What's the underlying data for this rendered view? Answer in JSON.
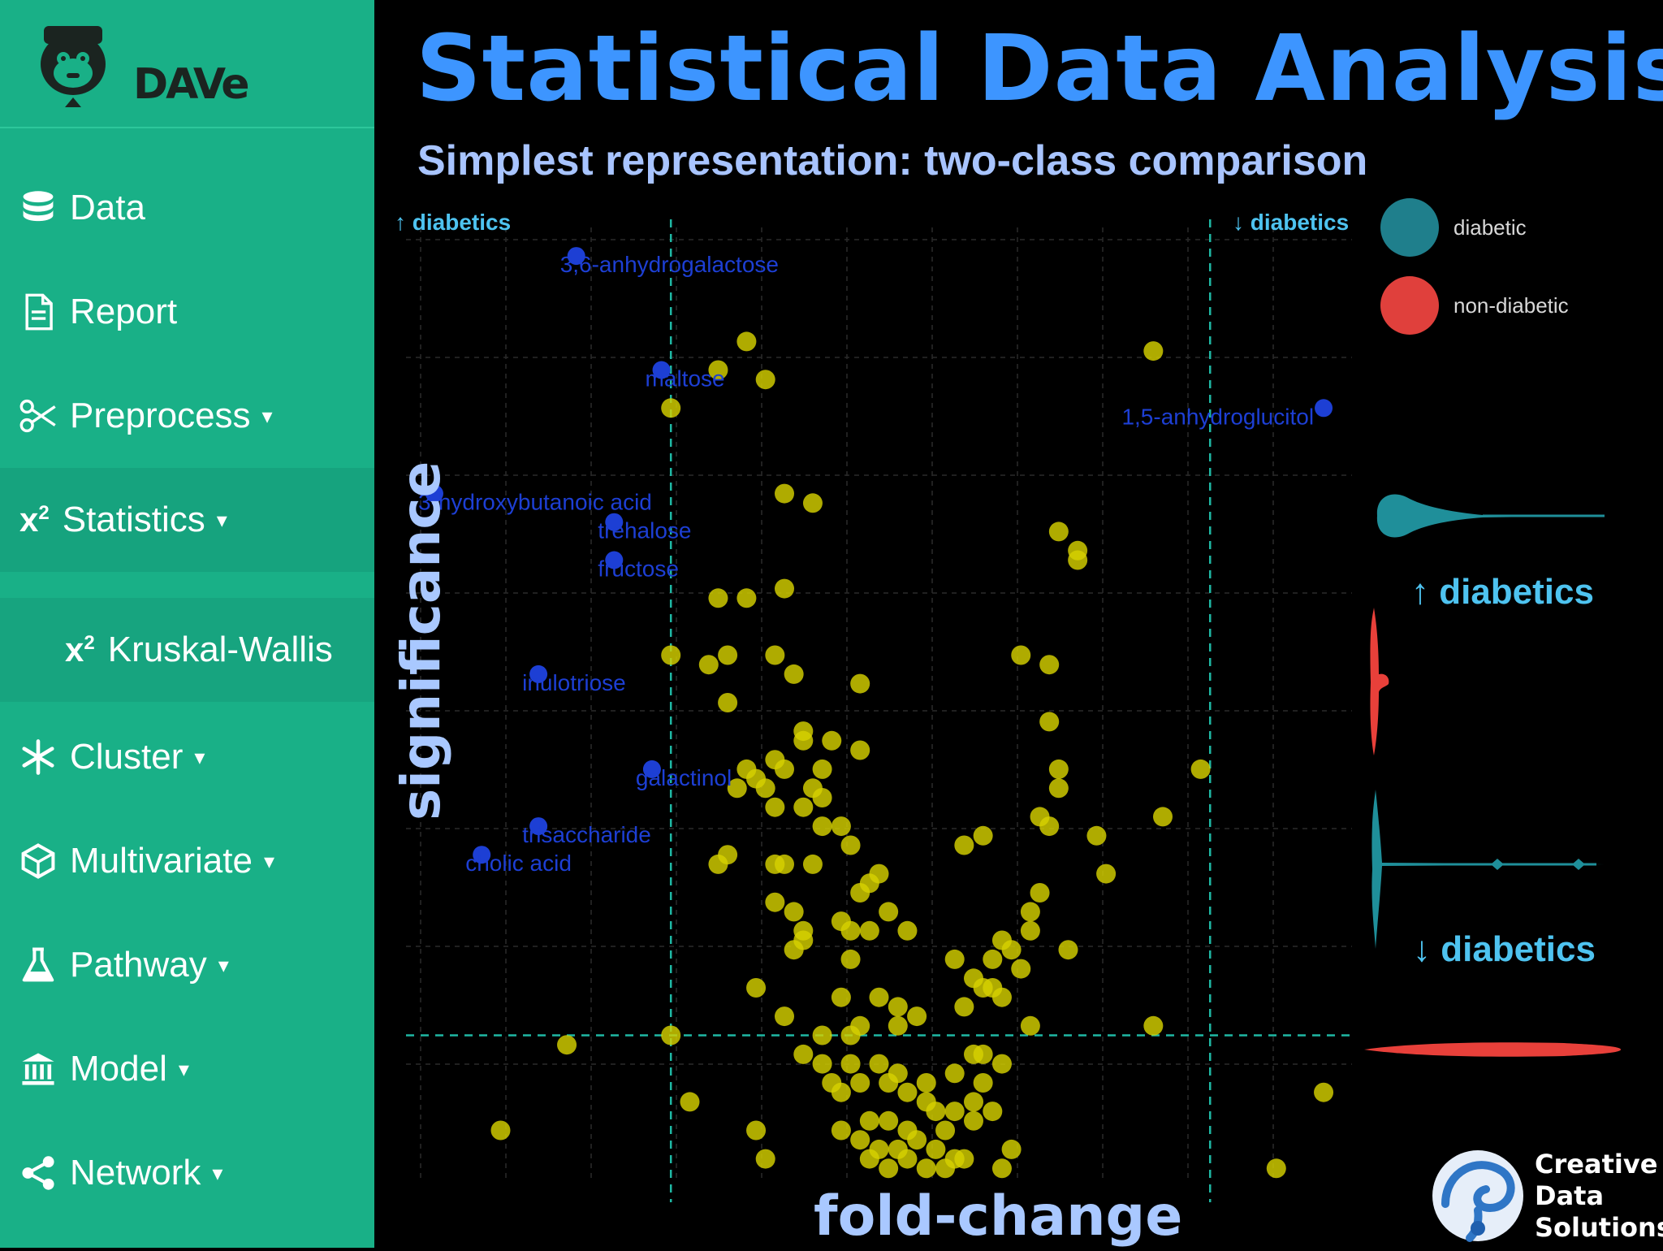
{
  "sidebar": {
    "logo_text": "DAVe",
    "items": [
      {
        "label": "Data",
        "icon": "database-icon"
      },
      {
        "label": "Report",
        "icon": "document-icon"
      },
      {
        "label": "Preprocess",
        "icon": "scissors-icon",
        "caret": "▾"
      },
      {
        "label": "Statistics",
        "icon": "chi-square-icon",
        "caret": "▾",
        "active": true
      },
      {
        "label": "Kruskal-Wallis",
        "icon": "chi-square-icon",
        "sub": true
      },
      {
        "label": "Cluster",
        "icon": "snowflake-icon",
        "caret": "▾"
      },
      {
        "label": "Multivariate",
        "icon": "cube-icon",
        "caret": "▾"
      },
      {
        "label": "Pathway",
        "icon": "flask-icon",
        "caret": "▾"
      },
      {
        "label": "Model",
        "icon": "bank-icon",
        "caret": "▾"
      },
      {
        "label": "Network",
        "icon": "share-icon",
        "caret": "▾"
      }
    ],
    "x2_text": "x",
    "x2_sup": "2"
  },
  "header": {
    "title": "Statistical Data Analysis",
    "subtitle": "Simplest representation: two-class comparison"
  },
  "plot": {
    "corner_left": "↑ diabetics",
    "corner_right": "↓ diabetics",
    "ylabel": "significance",
    "xlabel": "fold-change"
  },
  "legend": {
    "items": [
      {
        "label": "diabetic",
        "color": "#1f7f8c"
      },
      {
        "label": "non-diabetic",
        "color": "#e0403c"
      }
    ]
  },
  "violins": {
    "up_label": "↑ diabetics",
    "down_label": "↓ diabetics",
    "teal": "#1f8f9a",
    "red": "#e8403a"
  },
  "colors": {
    "sidebar": "#19b087",
    "title": "#3d95ff",
    "point_yellow": "#d6d100",
    "point_blue": "#1d3fd4",
    "threshold": "#1fb8a4"
  },
  "branding": {
    "lines": [
      "Creative",
      "Data",
      "Solutions"
    ]
  },
  "chart_data": {
    "type": "scatter",
    "xlabel": "fold-change",
    "ylabel": "significance",
    "x_unit": "plot-relative fold-change (arbitrary, 0–1 across panel)",
    "y_unit": "plot-relative significance (arbitrary, 0 bottom – 1 top)",
    "thresholds": {
      "x_left": 0.28,
      "x_right": 0.85,
      "y": 0.15
    },
    "grid": true,
    "legend": "top-right",
    "labeled_points": [
      {
        "label": "3,6-anhydrogalactose",
        "x": 0.18,
        "y": 0.97
      },
      {
        "label": "maltose",
        "x": 0.27,
        "y": 0.85
      },
      {
        "label": "1,5-anhydroglucitol",
        "x": 0.97,
        "y": 0.81
      },
      {
        "label": "3-hydroxybutanoic acid",
        "x": 0.03,
        "y": 0.72
      },
      {
        "label": "trehalose",
        "x": 0.22,
        "y": 0.69
      },
      {
        "label": "fructose",
        "x": 0.22,
        "y": 0.65
      },
      {
        "label": "inulotriose",
        "x": 0.14,
        "y": 0.53
      },
      {
        "label": "galactinol",
        "x": 0.26,
        "y": 0.43
      },
      {
        "label": "trisaccharide",
        "x": 0.14,
        "y": 0.37
      },
      {
        "label": "cholic acid",
        "x": 0.08,
        "y": 0.34
      }
    ],
    "points": [
      [
        0.36,
        0.88
      ],
      [
        0.33,
        0.85
      ],
      [
        0.38,
        0.84
      ],
      [
        0.28,
        0.81
      ],
      [
        0.79,
        0.87
      ],
      [
        0.4,
        0.72
      ],
      [
        0.43,
        0.71
      ],
      [
        0.69,
        0.68
      ],
      [
        0.71,
        0.66
      ],
      [
        0.71,
        0.65
      ],
      [
        0.33,
        0.61
      ],
      [
        0.36,
        0.61
      ],
      [
        0.4,
        0.62
      ],
      [
        0.65,
        0.55
      ],
      [
        0.28,
        0.55
      ],
      [
        0.32,
        0.54
      ],
      [
        0.34,
        0.55
      ],
      [
        0.39,
        0.55
      ],
      [
        0.68,
        0.54
      ],
      [
        0.41,
        0.53
      ],
      [
        0.48,
        0.52
      ],
      [
        0.34,
        0.5
      ],
      [
        0.42,
        0.47
      ],
      [
        0.45,
        0.46
      ],
      [
        0.42,
        0.46
      ],
      [
        0.48,
        0.45
      ],
      [
        0.68,
        0.48
      ],
      [
        0.39,
        0.44
      ],
      [
        0.44,
        0.43
      ],
      [
        0.36,
        0.43
      ],
      [
        0.4,
        0.43
      ],
      [
        0.37,
        0.42
      ],
      [
        0.35,
        0.41
      ],
      [
        0.38,
        0.41
      ],
      [
        0.43,
        0.41
      ],
      [
        0.44,
        0.4
      ],
      [
        0.42,
        0.39
      ],
      [
        0.69,
        0.43
      ],
      [
        0.69,
        0.41
      ],
      [
        0.84,
        0.43
      ],
      [
        0.8,
        0.38
      ],
      [
        0.39,
        0.39
      ],
      [
        0.44,
        0.37
      ],
      [
        0.46,
        0.37
      ],
      [
        0.67,
        0.38
      ],
      [
        0.68,
        0.37
      ],
      [
        0.61,
        0.36
      ],
      [
        0.59,
        0.35
      ],
      [
        0.73,
        0.36
      ],
      [
        0.47,
        0.35
      ],
      [
        0.34,
        0.34
      ],
      [
        0.39,
        0.33
      ],
      [
        0.4,
        0.33
      ],
      [
        0.33,
        0.33
      ],
      [
        0.43,
        0.33
      ],
      [
        0.5,
        0.32
      ],
      [
        0.74,
        0.32
      ],
      [
        0.49,
        0.31
      ],
      [
        0.48,
        0.3
      ],
      [
        0.67,
        0.3
      ],
      [
        0.39,
        0.29
      ],
      [
        0.41,
        0.28
      ],
      [
        0.51,
        0.28
      ],
      [
        0.46,
        0.27
      ],
      [
        0.66,
        0.28
      ],
      [
        0.42,
        0.26
      ],
      [
        0.47,
        0.26
      ],
      [
        0.49,
        0.26
      ],
      [
        0.53,
        0.26
      ],
      [
        0.63,
        0.25
      ],
      [
        0.66,
        0.26
      ],
      [
        0.41,
        0.24
      ],
      [
        0.42,
        0.25
      ],
      [
        0.7,
        0.24
      ],
      [
        0.64,
        0.24
      ],
      [
        0.47,
        0.23
      ],
      [
        0.62,
        0.23
      ],
      [
        0.58,
        0.23
      ],
      [
        0.6,
        0.21
      ],
      [
        0.65,
        0.22
      ],
      [
        0.62,
        0.2
      ],
      [
        0.63,
        0.19
      ],
      [
        0.61,
        0.2
      ],
      [
        0.46,
        0.19
      ],
      [
        0.5,
        0.19
      ],
      [
        0.52,
        0.18
      ],
      [
        0.59,
        0.18
      ],
      [
        0.37,
        0.2
      ],
      [
        0.4,
        0.17
      ],
      [
        0.48,
        0.16
      ],
      [
        0.54,
        0.17
      ],
      [
        0.44,
        0.15
      ],
      [
        0.47,
        0.15
      ],
      [
        0.52,
        0.16
      ],
      [
        0.66,
        0.16
      ],
      [
        0.79,
        0.16
      ],
      [
        0.17,
        0.14
      ],
      [
        0.28,
        0.15
      ],
      [
        0.42,
        0.13
      ],
      [
        0.44,
        0.12
      ],
      [
        0.47,
        0.12
      ],
      [
        0.5,
        0.12
      ],
      [
        0.52,
        0.11
      ],
      [
        0.6,
        0.13
      ],
      [
        0.61,
        0.13
      ],
      [
        0.63,
        0.12
      ],
      [
        0.45,
        0.1
      ],
      [
        0.46,
        0.09
      ],
      [
        0.48,
        0.1
      ],
      [
        0.51,
        0.1
      ],
      [
        0.53,
        0.09
      ],
      [
        0.55,
        0.1
      ],
      [
        0.58,
        0.11
      ],
      [
        0.61,
        0.1
      ],
      [
        0.3,
        0.08
      ],
      [
        0.55,
        0.08
      ],
      [
        0.56,
        0.07
      ],
      [
        0.58,
        0.07
      ],
      [
        0.6,
        0.08
      ],
      [
        0.62,
        0.07
      ],
      [
        0.49,
        0.06
      ],
      [
        0.51,
        0.06
      ],
      [
        0.53,
        0.05
      ],
      [
        0.57,
        0.05
      ],
      [
        0.6,
        0.06
      ],
      [
        0.46,
        0.05
      ],
      [
        0.1,
        0.05
      ],
      [
        0.37,
        0.05
      ],
      [
        0.48,
        0.04
      ],
      [
        0.5,
        0.03
      ],
      [
        0.52,
        0.03
      ],
      [
        0.54,
        0.04
      ],
      [
        0.56,
        0.03
      ],
      [
        0.58,
        0.02
      ],
      [
        0.49,
        0.02
      ],
      [
        0.51,
        0.01
      ],
      [
        0.55,
        0.01
      ],
      [
        0.57,
        0.01
      ],
      [
        0.64,
        0.03
      ],
      [
        0.63,
        0.01
      ],
      [
        0.38,
        0.02
      ],
      [
        0.97,
        0.09
      ],
      [
        0.92,
        0.01
      ],
      [
        0.53,
        0.02
      ],
      [
        0.59,
        0.02
      ]
    ]
  }
}
